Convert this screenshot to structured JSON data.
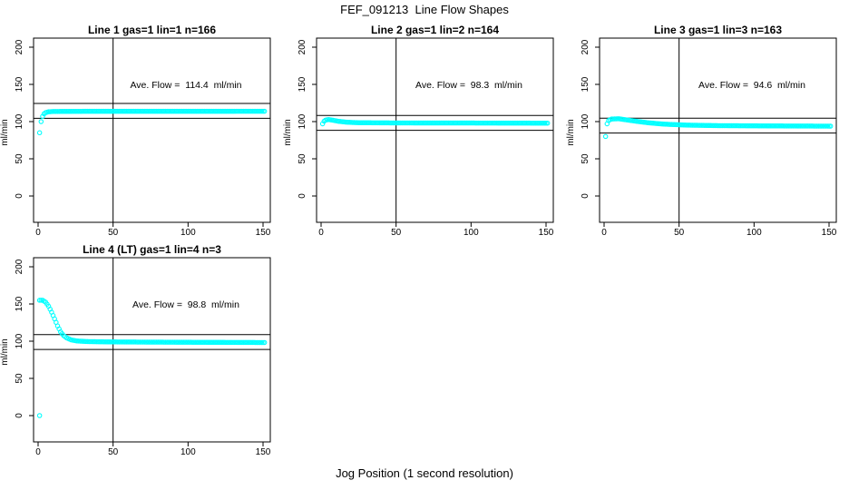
{
  "figure": {
    "title": "FEF_091213  Line Flow Shapes",
    "xlabel": "Jog Position (1 second resolution)",
    "ylabel": "ml/min",
    "background_color": "#ffffff",
    "marker_color": "#00ffff",
    "line_color": "#000000"
  },
  "chart_data": {
    "type": "scatter",
    "title": "FEF_091213  Line Flow Shapes",
    "xlabel": "Jog Position (1 second resolution)",
    "ylabel": "ml/min",
    "grid": false,
    "legend": "none",
    "marker": "open-circle",
    "marker_color": "#00ffff",
    "x_ticks": [
      0,
      50,
      100,
      150
    ],
    "y_ticks": [
      0,
      50,
      100,
      150,
      200
    ],
    "x_range": [
      -3,
      155
    ],
    "y_range": [
      -35,
      212
    ],
    "layout": "2x3 grid, panels at (row1:col1,col2,col3) and (row2:col1)",
    "panels": [
      {
        "title": "Line 1 gas=1 lin=1 n=166",
        "n": 166,
        "gas": 1,
        "lin": 1,
        "ave_flow_ml_min": 114.4,
        "annotation": "Ave. Flow =  114.4  ml/min",
        "hlines_y": [
          104.4,
          124.4
        ],
        "vline_x": 50,
        "x_start": 1,
        "x_end": 151,
        "x_step": 1,
        "series_keyframes": [
          [
            1,
            85
          ],
          [
            2,
            100
          ],
          [
            3,
            107
          ],
          [
            4,
            110.5
          ],
          [
            5,
            112
          ],
          [
            7,
            113.2
          ],
          [
            10,
            113.6
          ],
          [
            30,
            113.8
          ],
          [
            151,
            113.9
          ]
        ],
        "extra_points": []
      },
      {
        "title": "Line 2 gas=1 lin=2 n=164",
        "n": 164,
        "gas": 1,
        "lin": 2,
        "ave_flow_ml_min": 98.3,
        "annotation": "Ave. Flow =  98.3  ml/min",
        "hlines_y": [
          88.3,
          108.3
        ],
        "vline_x": 50,
        "x_start": 1,
        "x_end": 151,
        "x_step": 1,
        "series_keyframes": [
          [
            1,
            97
          ],
          [
            2,
            100.5
          ],
          [
            3,
            102
          ],
          [
            5,
            102.8
          ],
          [
            8,
            101.8
          ],
          [
            12,
            100.3
          ],
          [
            17,
            99.2
          ],
          [
            25,
            98.5
          ],
          [
            50,
            98.2
          ],
          [
            100,
            98.1
          ],
          [
            151,
            97.9
          ]
        ],
        "extra_points": []
      },
      {
        "title": "Line 3 gas=1 lin=3 n=163",
        "n": 163,
        "gas": 1,
        "lin": 3,
        "ave_flow_ml_min": 94.6,
        "annotation": "Ave. Flow =  94.6  ml/min",
        "hlines_y": [
          84.6,
          104.6
        ],
        "vline_x": 50,
        "x_start": 1,
        "x_end": 151,
        "x_step": 1,
        "series_keyframes": [
          [
            1,
            80
          ],
          [
            2,
            97
          ],
          [
            3,
            101.5
          ],
          [
            5,
            103.5
          ],
          [
            10,
            103.8
          ],
          [
            15,
            102.3
          ],
          [
            22,
            100.3
          ],
          [
            30,
            98.3
          ],
          [
            40,
            96.6
          ],
          [
            55,
            95.3
          ],
          [
            75,
            94.6
          ],
          [
            110,
            94.2
          ],
          [
            151,
            93.9
          ]
        ],
        "extra_points": []
      },
      {
        "title": "Line 4 (LT) gas=1 lin=4 n=3",
        "n": 3,
        "gas": 1,
        "lin": 4,
        "ave_flow_ml_min": 98.8,
        "annotation": "Ave. Flow =  98.8  ml/min",
        "hlines_y": [
          88.8,
          108.8
        ],
        "vline_x": 50,
        "x_start": 1,
        "x_end": 151,
        "x_step": 1,
        "series_keyframes": [
          [
            1,
            155
          ],
          [
            3,
            155
          ],
          [
            5,
            152.5
          ],
          [
            7,
            147
          ],
          [
            9,
            139
          ],
          [
            11,
            130
          ],
          [
            13,
            120.5
          ],
          [
            15,
            112.5
          ],
          [
            17,
            107.5
          ],
          [
            19,
            104.5
          ],
          [
            22,
            101.8
          ],
          [
            26,
            100.3
          ],
          [
            33,
            99.5
          ],
          [
            45,
            99.1
          ],
          [
            70,
            98.8
          ],
          [
            110,
            98.5
          ],
          [
            151,
            98.2
          ]
        ],
        "extra_points": [
          [
            1,
            0
          ]
        ]
      }
    ]
  }
}
